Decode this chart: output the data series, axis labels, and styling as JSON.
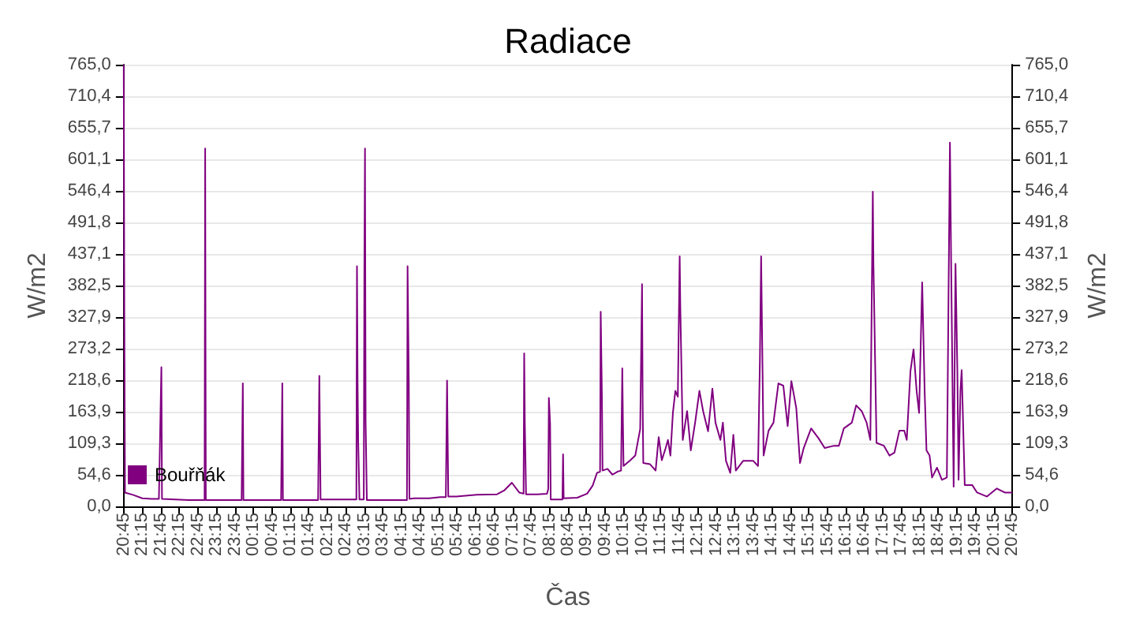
{
  "chart_data": {
    "type": "line",
    "title": "Radiace",
    "xlabel": "Čas",
    "ylabel": "W/m2",
    "y2label": "W/m2",
    "xlim": [
      "--01-01T20:45",
      "--01-02T20:45"
    ],
    "xticks": [
      {
        "value": "--01-01T20:45",
        "label": "20:45"
      },
      {
        "value": "--01-01T21:15",
        "label": "21:15"
      },
      {
        "value": "--01-01T21:45",
        "label": "21:45"
      },
      {
        "value": "--01-01T22:15",
        "label": "22:15"
      },
      {
        "value": "--01-01T22:45",
        "label": "22:45"
      },
      {
        "value": "--01-01T23:15",
        "label": "23:15"
      },
      {
        "value": "--01-01T23:45",
        "label": "23:45"
      },
      {
        "value": "--01-02T00:15",
        "label": "00:15"
      },
      {
        "value": "--01-02T00:45",
        "label": "00:45"
      },
      {
        "value": "--01-02T01:15",
        "label": "01:15"
      },
      {
        "value": "--01-02T01:45",
        "label": "01:45"
      },
      {
        "value": "--01-02T02:15",
        "label": "02:15"
      },
      {
        "value": "--01-02T02:45",
        "label": "02:45"
      },
      {
        "value": "--01-02T03:15",
        "label": "03:15"
      },
      {
        "value": "--01-02T03:45",
        "label": "03:45"
      },
      {
        "value": "--01-02T04:15",
        "label": "04:15"
      },
      {
        "value": "--01-02T04:45",
        "label": "04:45"
      },
      {
        "value": "--01-02T05:15",
        "label": "05:15"
      },
      {
        "value": "--01-02T05:45",
        "label": "05:45"
      },
      {
        "value": "--01-02T06:15",
        "label": "06:15"
      },
      {
        "value": "--01-02T06:45",
        "label": "06:45"
      },
      {
        "value": "--01-02T07:15",
        "label": "07:15"
      },
      {
        "value": "--01-02T07:45",
        "label": "07:45"
      },
      {
        "value": "--01-02T08:15",
        "label": "08:15"
      },
      {
        "value": "--01-02T08:45",
        "label": "08:45"
      },
      {
        "value": "--01-02T09:15",
        "label": "09:15"
      },
      {
        "value": "--01-02T09:45",
        "label": "09:45"
      },
      {
        "value": "--01-02T10:15",
        "label": "10:15"
      },
      {
        "value": "--01-02T10:45",
        "label": "10:45"
      },
      {
        "value": "--01-02T11:15",
        "label": "11:15"
      },
      {
        "value": "--01-02T11:45",
        "label": "11:45"
      },
      {
        "value": "--01-02T12:15",
        "label": "12:15"
      },
      {
        "value": "--01-02T12:45",
        "label": "12:45"
      },
      {
        "value": "--01-02T13:15",
        "label": "13:15"
      },
      {
        "value": "--01-02T13:45",
        "label": "13:45"
      },
      {
        "value": "--01-02T14:15",
        "label": "14:15"
      },
      {
        "value": "--01-02T14:45",
        "label": "14:45"
      },
      {
        "value": "--01-02T15:15",
        "label": "15:15"
      },
      {
        "value": "--01-02T15:45",
        "label": "15:45"
      },
      {
        "value": "--01-02T16:15",
        "label": "16:15"
      },
      {
        "value": "--01-02T16:45",
        "label": "16:45"
      },
      {
        "value": "--01-02T17:15",
        "label": "17:15"
      },
      {
        "value": "--01-02T17:45",
        "label": "17:45"
      },
      {
        "value": "--01-02T18:15",
        "label": "18:15"
      },
      {
        "value": "--01-02T18:45",
        "label": "18:45"
      },
      {
        "value": "--01-02T19:15",
        "label": "19:15"
      },
      {
        "value": "--01-02T19:45",
        "label": "19:45"
      },
      {
        "value": "--01-02T20:15",
        "label": "20:15"
      },
      {
        "value": "--01-02T20:45",
        "label": "20:45"
      }
    ],
    "ylim": [
      0,
      765
    ],
    "yticks": [
      {
        "value": 0,
        "label": "0,0"
      },
      {
        "value": 54.64,
        "label": "54,6"
      },
      {
        "value": 109.29,
        "label": "109,3"
      },
      {
        "value": 163.93,
        "label": "163,9"
      },
      {
        "value": 218.57,
        "label": "218,6"
      },
      {
        "value": 273.21,
        "label": "273,2"
      },
      {
        "value": 327.86,
        "label": "327,9"
      },
      {
        "value": 382.5,
        "label": "382,5"
      },
      {
        "value": 437.14,
        "label": "437,1"
      },
      {
        "value": 491.79,
        "label": "491,8"
      },
      {
        "value": 546.43,
        "label": "546,4"
      },
      {
        "value": 601.07,
        "label": "601,1"
      },
      {
        "value": 655.71,
        "label": "655,7"
      },
      {
        "value": 710.36,
        "label": "710,4"
      },
      {
        "value": 765,
        "label": "765,0"
      }
    ],
    "y2lim": [
      0,
      765
    ],
    "y2ticks": [
      {
        "value": 0,
        "label": "0,0"
      },
      {
        "value": 54.64,
        "label": "54,6"
      },
      {
        "value": 109.29,
        "label": "109,3"
      },
      {
        "value": 163.93,
        "label": "163,9"
      },
      {
        "value": 218.57,
        "label": "218,6"
      },
      {
        "value": 273.21,
        "label": "273,2"
      },
      {
        "value": 327.86,
        "label": "327,9"
      },
      {
        "value": 382.5,
        "label": "382,5"
      },
      {
        "value": 437.14,
        "label": "437,1"
      },
      {
        "value": 491.79,
        "label": "491,8"
      },
      {
        "value": 546.43,
        "label": "546,4"
      },
      {
        "value": 601.07,
        "label": "601,1"
      },
      {
        "value": 655.71,
        "label": "655,7"
      },
      {
        "value": 710.36,
        "label": "710,4"
      },
      {
        "value": 765,
        "label": "765,0"
      }
    ],
    "grid": "y",
    "legend": "bottom left",
    "marker": "none",
    "line_style": "solid",
    "series": [
      {
        "name": "Bouřňák",
        "color": "#800080",
        "x": [
          "--01-01T20:45",
          "--01-01T20:46",
          "--01-01T20:47",
          "--01-01T21:00",
          "--01-01T21:15",
          "--01-01T21:30",
          "--01-01T21:42",
          "--01-01T21:44",
          "--01-01T21:46",
          "--01-01T21:47",
          "--01-01T22:30",
          "--01-01T22:56",
          "--01-01T22:57",
          "--01-01T22:58",
          "--01-01T23:56",
          "--01-01T23:57",
          "--01-01T23:58",
          "--01-01T23:59",
          "--01-02T01:00",
          "--01-02T01:01",
          "--01-02T01:02",
          "--01-02T01:03",
          "--01-02T02:00",
          "--01-02T02:01",
          "--01-02T02:02",
          "--01-02T02:04",
          "--01-02T03:02",
          "--01-02T03:03",
          "--01-02T03:04",
          "--01-02T03:05",
          "--01-02T03:07",
          "--01-02T03:14",
          "--01-02T03:15",
          "--01-02T03:16",
          "--01-02T03:17",
          "--01-02T03:19",
          "--01-02T04:24",
          "--01-02T04:25",
          "--01-02T04:27",
          "--01-02T04:28",
          "--01-02T04:36",
          "--01-02T05:00",
          "--01-02T05:18",
          "--01-02T05:27",
          "--01-02T05:28",
          "--01-02T05:29",
          "--01-02T05:31",
          "--01-02T05:44",
          "--01-02T06:17",
          "--01-02T06:50",
          "--01-02T07:02",
          "--01-02T07:14",
          "--01-02T07:26",
          "--01-02T07:33",
          "--01-02T07:34",
          "--01-02T07:35",
          "--01-02T07:37",
          "--01-02T07:55",
          "--01-02T08:11",
          "--01-02T08:13",
          "--01-02T08:14",
          "--01-02T08:16",
          "--01-02T08:17",
          "--01-02T08:28",
          "--01-02T08:36",
          "--01-02T08:37",
          "--01-02T08:38",
          "--01-02T09:00",
          "--01-02T09:16",
          "--01-02T09:25",
          "--01-02T09:32",
          "--01-02T09:37",
          "--01-02T09:38",
          "--01-02T09:40",
          "--01-02T09:41",
          "--01-02T09:49",
          "--01-02T09:57",
          "--01-02T10:05",
          "--01-02T10:11",
          "--01-02T10:13",
          "--01-02T10:14",
          "--01-02T10:15",
          "--01-02T10:26",
          "--01-02T10:34",
          "--01-02T10:42",
          "--01-02T10:45",
          "--01-02T10:46",
          "--01-02T10:47",
          "--01-02T10:58",
          "--01-02T11:07",
          "--01-02T11:12",
          "--01-02T11:17",
          "--01-02T11:23",
          "--01-02T11:27",
          "--01-02T11:31",
          "--01-02T11:35",
          "--01-02T11:39",
          "--01-02T11:43",
          "--01-02T11:46",
          "--01-02T11:47",
          "--01-02T11:51",
          "--01-02T11:58",
          "--01-02T12:04",
          "--01-02T12:11",
          "--01-02T12:18",
          "--01-02T12:24",
          "--01-02T12:32",
          "--01-02T12:39",
          "--01-02T12:44",
          "--01-02T12:52",
          "--01-02T12:56",
          "--01-02T13:01",
          "--01-02T13:08",
          "--01-02T13:13",
          "--01-02T13:17",
          "--01-02T13:29",
          "--01-02T13:45",
          "--01-02T13:53",
          "--01-02T13:56",
          "--01-02T13:58",
          "--01-02T14:02",
          "--01-02T14:10",
          "--01-02T14:18",
          "--01-02T14:26",
          "--01-02T14:34",
          "--01-02T14:41",
          "--01-02T14:47",
          "--01-02T14:55",
          "--01-02T15:01",
          "--01-02T15:07",
          "--01-02T15:19",
          "--01-02T15:31",
          "--01-02T15:41",
          "--01-02T15:56",
          "--01-02T16:04",
          "--01-02T16:12",
          "--01-02T16:25",
          "--01-02T16:32",
          "--01-02T16:41",
          "--01-02T16:49",
          "--01-02T16:55",
          "--01-02T16:59",
          "--01-02T17:00",
          "--01-02T17:05",
          "--01-02T17:17",
          "--01-02T17:26",
          "--01-02T17:34",
          "--01-02T17:42",
          "--01-02T17:50",
          "--01-02T17:54",
          "--01-02T18:00",
          "--01-02T18:05",
          "--01-02T18:10",
          "--01-02T18:14",
          "--01-02T18:19",
          "--01-02T18:23",
          "--01-02T18:26",
          "--01-02T18:31",
          "--01-02T18:35",
          "--01-02T18:43",
          "--01-02T18:51",
          "--01-02T18:59",
          "--01-02T19:04",
          "--01-02T19:06",
          "--01-02T19:10",
          "--01-02T19:13",
          "--01-02T19:16",
          "--01-02T19:18",
          "--01-02T19:21",
          "--01-02T19:23",
          "--01-02T19:28",
          "--01-02T19:40",
          "--01-02T19:48",
          "--01-02T20:04",
          "--01-02T20:20",
          "--01-02T20:33",
          "--01-02T20:45"
        ],
        "values": [
          765,
          320,
          24,
          20,
          14,
          13,
          13,
          127,
          241,
          13,
          11,
          11,
          620,
          11,
          11,
          111,
          213,
          11,
          11,
          111,
          213,
          11,
          11,
          115,
          226,
          12,
          12,
          416,
          213,
          111,
          12,
          12,
          416,
          620,
          147,
          11,
          11,
          416,
          213,
          13,
          14,
          14,
          16,
          16,
          113,
          218,
          17,
          17,
          20,
          21,
          28,
          41,
          24,
          22,
          265,
          146,
          21,
          21,
          22,
          30,
          188,
          143,
          12,
          12,
          12,
          90,
          14,
          15,
          22,
          36,
          58,
          60,
          337,
          188,
          62,
          65,
          55,
          60,
          62,
          239,
          148,
          70,
          80,
          88,
          134,
          385,
          181,
          75,
          73,
          62,
          120,
          80,
          100,
          115,
          88,
          162,
          200,
          190,
          433,
          347,
          115,
          165,
          97,
          145,
          200,
          165,
          130,
          204,
          145,
          115,
          145,
          79,
          58,
          124,
          62,
          79,
          79,
          70,
          252,
          433,
          88,
          131,
          145,
          213,
          209,
          139,
          217,
          170,
          75,
          101,
          135,
          118,
          101,
          105,
          105,
          135,
          145,
          175,
          165,
          145,
          115,
          545,
          422,
          110,
          105,
          88,
          93,
          131,
          131,
          115,
          234,
          272,
          200,
          162,
          388,
          200,
          97,
          88,
          50,
          67,
          46,
          50,
          630,
          417,
          34,
          420,
          236,
          46,
          200,
          236,
          37,
          37,
          24,
          17,
          31,
          24,
          24
        ]
      }
    ]
  }
}
